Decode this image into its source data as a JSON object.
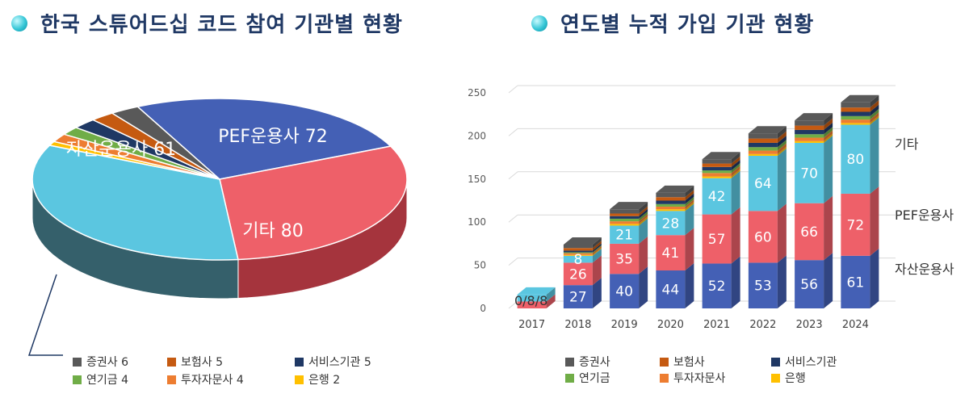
{
  "left": {
    "title": "한국 스튜어드십 코드 참여 기관별 현황",
    "chart_data": {
      "type": "pie",
      "slices": [
        {
          "label": "자산운용사",
          "value": 61,
          "color": "#4460b5",
          "side": "#2b3f7a"
        },
        {
          "label": "PEF운용사",
          "value": 72,
          "color": "#ee6069",
          "side": "#a5343d"
        },
        {
          "label": "기타",
          "value": 80,
          "color": "#5bc6e0",
          "side": "#35606b"
        },
        {
          "label": "은행",
          "value": 2,
          "color": "#ffc000",
          "side": "#b38600"
        },
        {
          "label": "투자자문사",
          "value": 4,
          "color": "#ed7d31",
          "side": "#a55318"
        },
        {
          "label": "연기금",
          "value": 4,
          "color": "#70ad47",
          "side": "#4a7a2c"
        },
        {
          "label": "서비스기관",
          "value": 5,
          "color": "#1f3864",
          "side": "#14253f"
        },
        {
          "label": "보험사",
          "value": 5,
          "color": "#c55a11",
          "side": "#8a3d09"
        },
        {
          "label": "증권사",
          "value": 6,
          "color": "#595959",
          "side": "#3a3a3a"
        }
      ],
      "slice_labels": [
        "자산운용사 61",
        "PEF운용사 72",
        "기타 80"
      ],
      "legend": [
        {
          "text": "증권사 6",
          "color": "#595959"
        },
        {
          "text": "보험사 5",
          "color": "#c55a11"
        },
        {
          "text": "서비스기관 5",
          "color": "#1f3864"
        },
        {
          "text": "연기금 4",
          "color": "#70ad47"
        },
        {
          "text": "투자자문사 4",
          "color": "#ed7d31"
        },
        {
          "text": "은행 2",
          "color": "#ffc000"
        }
      ]
    }
  },
  "right": {
    "title": "연도별 누적 가입 기관 현황",
    "chart_data": {
      "type": "bar",
      "stacked": true,
      "categories": [
        "2017",
        "2018",
        "2019",
        "2020",
        "2021",
        "2022",
        "2023",
        "2024"
      ],
      "ylim": [
        0,
        250
      ],
      "yticks": [
        "0",
        "50",
        "100",
        "150",
        "200",
        "250"
      ],
      "series": [
        {
          "name": "자산운용사",
          "color": "#4460b5",
          "values": [
            0,
            27,
            40,
            44,
            52,
            53,
            56,
            61
          ]
        },
        {
          "name": "PEF운용사",
          "color": "#ee6069",
          "values": [
            8,
            26,
            35,
            41,
            57,
            60,
            66,
            72
          ]
        },
        {
          "name": "기타",
          "color": "#5bc6e0",
          "values": [
            8,
            8,
            21,
            28,
            42,
            64,
            70,
            80
          ]
        },
        {
          "name": "은행",
          "color": "#ffc000",
          "values": [
            0,
            1,
            2,
            2,
            2,
            2,
            2,
            2
          ]
        },
        {
          "name": "투자자문사",
          "color": "#ed7d31",
          "values": [
            0,
            2,
            3,
            3,
            4,
            4,
            4,
            4
          ]
        },
        {
          "name": "연기금",
          "color": "#70ad47",
          "values": [
            0,
            1,
            3,
            3,
            3,
            4,
            4,
            4
          ]
        },
        {
          "name": "서비스기관",
          "color": "#1f3864",
          "values": [
            0,
            2,
            3,
            4,
            4,
            5,
            5,
            5
          ]
        },
        {
          "name": "보험사",
          "color": "#c55a11",
          "values": [
            0,
            3,
            3,
            4,
            4,
            5,
            5,
            5
          ]
        },
        {
          "name": "증권사",
          "color": "#595959",
          "values": [
            0,
            4,
            5,
            5,
            5,
            6,
            6,
            6
          ]
        }
      ],
      "data_labels": [
        [
          "0",
          "8",
          "8"
        ],
        [
          "27",
          "26",
          "8"
        ],
        [
          "40",
          "35",
          "21"
        ],
        [
          "44",
          "41",
          "28"
        ],
        [
          "52",
          "57",
          "42"
        ],
        [
          "53",
          "60",
          "64"
        ],
        [
          "56",
          "66",
          "70"
        ],
        [
          "61",
          "72",
          "80"
        ]
      ],
      "side_labels": [
        "기타",
        "PEF운용사",
        "자산운용사"
      ],
      "legend": [
        {
          "text": "증권사",
          "color": "#595959"
        },
        {
          "text": "보험사",
          "color": "#c55a11"
        },
        {
          "text": "서비스기관",
          "color": "#1f3864"
        },
        {
          "text": "연기금",
          "color": "#70ad47"
        },
        {
          "text": "투자자문사",
          "color": "#ed7d31"
        },
        {
          "text": "은행",
          "color": "#ffc000"
        }
      ]
    }
  }
}
